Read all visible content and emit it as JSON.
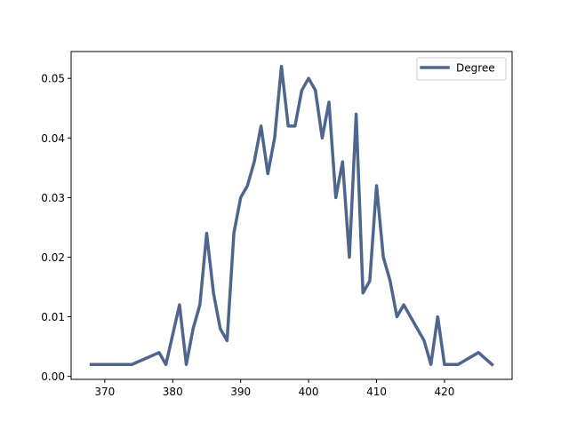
{
  "chart_data": {
    "type": "line",
    "title": "",
    "xlabel": "",
    "ylabel": "",
    "xlim": [
      365.05,
      429.95
    ],
    "ylim": [
      -0.0005,
      0.0545
    ],
    "xticks": [
      370,
      380,
      390,
      400,
      410,
      420
    ],
    "xtick_labels": [
      "370",
      "380",
      "390",
      "400",
      "410",
      "420"
    ],
    "yticks": [
      0.0,
      0.01,
      0.02,
      0.03,
      0.04,
      0.05
    ],
    "ytick_labels": [
      "0.00",
      "0.01",
      "0.02",
      "0.03",
      "0.04",
      "0.05"
    ],
    "grid": false,
    "legend_position": "top-right",
    "series": [
      {
        "name": "Degree",
        "color": "#4c6691",
        "x": [
          368,
          374,
          378,
          379,
          381,
          382,
          383,
          384,
          385,
          386,
          387,
          388,
          389,
          390,
          391,
          392,
          393,
          394,
          395,
          396,
          397,
          398,
          399,
          400,
          401,
          402,
          403,
          404,
          405,
          406,
          407,
          408,
          409,
          410,
          411,
          412,
          413,
          414,
          417,
          418,
          419,
          420,
          422,
          425,
          427
        ],
        "y": [
          0.002,
          0.002,
          0.004,
          0.002,
          0.012,
          0.002,
          0.008,
          0.012,
          0.024,
          0.014,
          0.008,
          0.006,
          0.024,
          0.03,
          0.032,
          0.036,
          0.042,
          0.034,
          0.04,
          0.052,
          0.042,
          0.042,
          0.048,
          0.05,
          0.048,
          0.04,
          0.046,
          0.03,
          0.036,
          0.02,
          0.044,
          0.014,
          0.016,
          0.032,
          0.02,
          0.016,
          0.01,
          0.012,
          0.006,
          0.002,
          0.01,
          0.002,
          0.002,
          0.004,
          0.002
        ]
      }
    ]
  }
}
